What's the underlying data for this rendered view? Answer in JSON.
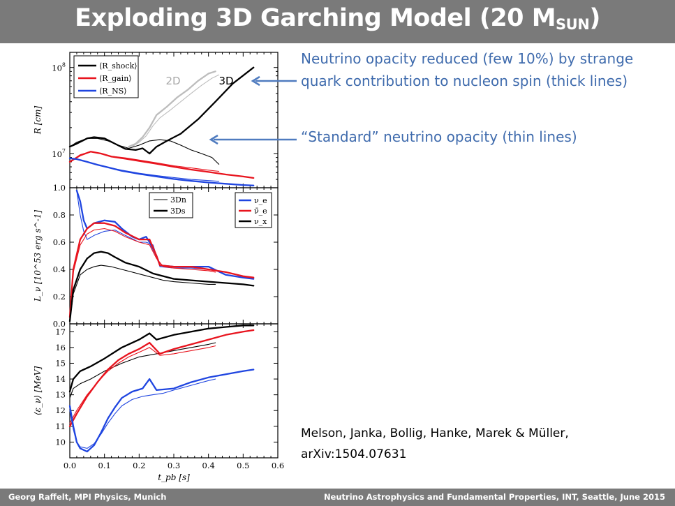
{
  "title": {
    "main": "Exploding 3D Garching Model (20 M",
    "sub": "SUN",
    "close": ")"
  },
  "annotations": {
    "thick": "Neutrino opacity reduced (few 10%) by strange quark contribution to nucleon spin (thick lines)",
    "thin": "“Standard” neutrino opacity (thin lines)"
  },
  "citation": {
    "line1": "Melson, Janka, Bollig, Hanke, Marek & Müller,",
    "line2": "arXiv:1504.07631"
  },
  "footer": {
    "left": "Georg Raffelt, MPI Physics, Munich",
    "right": "Neutrino Astrophysics and Fundamental Properties, INT, Seattle, June 2015"
  },
  "colors": {
    "black": "#000000",
    "red": "#e8141e",
    "blue": "#1f45e0",
    "gray": "#bdbdbd",
    "annotation": "#3f6bad"
  },
  "chart_data": [
    {
      "type": "line",
      "panel": "radii",
      "ylabel": "R [cm]",
      "yscale": "log",
      "ylim": [
        4000000,
        150000000
      ],
      "xlim": [
        0,
        0.6
      ],
      "yticks": [
        {
          "v": 10000000,
          "label": "10",
          "exp": "7"
        },
        {
          "v": 100000000,
          "label": "10",
          "exp": "8"
        }
      ],
      "legend": [
        "⟨R_shock⟩",
        "⟨R_gain⟩",
        "⟨R_NS⟩"
      ],
      "labels": {
        "left": "2D",
        "right": "3D"
      },
      "series": [
        {
          "color": "black",
          "width": 2.3,
          "x": [
            0,
            0.02,
            0.05,
            0.07,
            0.1,
            0.13,
            0.16,
            0.19,
            0.21,
            0.23,
            0.25,
            0.28,
            0.32,
            0.37,
            0.42,
            0.47,
            0.53
          ],
          "y": [
            12000000,
            13000000,
            15000000,
            15500000,
            15000000,
            13000000,
            11300000,
            11000000,
            11500000,
            10000000,
            12000000,
            14000000,
            17000000,
            25000000,
            40000000,
            65000000,
            100000000
          ]
        },
        {
          "color": "black",
          "width": 1.1,
          "x": [
            0,
            0.02,
            0.05,
            0.08,
            0.11,
            0.14,
            0.17,
            0.2,
            0.23,
            0.26,
            0.29,
            0.32,
            0.35,
            0.38,
            0.41,
            0.43
          ],
          "y": [
            12000000,
            13500000,
            15000000,
            15000000,
            14000000,
            12500000,
            11500000,
            12500000,
            14000000,
            14500000,
            14000000,
            12500000,
            11000000,
            10000000,
            9000000,
            7500000
          ]
        },
        {
          "color": "gray",
          "width": 2.3,
          "x": [
            0.17,
            0.19,
            0.21,
            0.23,
            0.25,
            0.28,
            0.31,
            0.34,
            0.37,
            0.4,
            0.42
          ],
          "y": [
            12000000,
            13000000,
            15500000,
            20000000,
            28000000,
            35000000,
            45000000,
            55000000,
            70000000,
            85000000,
            90000000
          ]
        },
        {
          "color": "gray",
          "width": 1.1,
          "x": [
            0.18,
            0.2,
            0.22,
            0.24,
            0.26,
            0.29,
            0.32,
            0.35,
            0.38,
            0.41,
            0.43
          ],
          "y": [
            12000000,
            13500000,
            16000000,
            21000000,
            26000000,
            32000000,
            40000000,
            50000000,
            62000000,
            75000000,
            82000000
          ]
        },
        {
          "color": "red",
          "width": 2.3,
          "x": [
            0,
            0.03,
            0.06,
            0.09,
            0.12,
            0.16,
            0.2,
            0.25,
            0.3,
            0.35,
            0.4,
            0.45,
            0.5,
            0.53
          ],
          "y": [
            8000000,
            9500000,
            10500000,
            10000000,
            9200000,
            8700000,
            8200000,
            7600000,
            7000000,
            6500000,
            6100000,
            5700000,
            5400000,
            5200000
          ]
        },
        {
          "color": "red",
          "width": 1.1,
          "x": [
            0,
            0.03,
            0.06,
            0.09,
            0.12,
            0.16,
            0.2,
            0.25,
            0.3,
            0.35,
            0.4,
            0.43
          ],
          "y": [
            8000000,
            9700000,
            10500000,
            10000000,
            9300000,
            8900000,
            8400000,
            7800000,
            7200000,
            6800000,
            6400000,
            6200000
          ]
        },
        {
          "color": "blue",
          "width": 2.3,
          "x": [
            0,
            0.02,
            0.05,
            0.08,
            0.11,
            0.15,
            0.2,
            0.25,
            0.3,
            0.35,
            0.4,
            0.45,
            0.5,
            0.53
          ],
          "y": [
            8800000,
            8600000,
            8000000,
            7400000,
            6900000,
            6300000,
            5800000,
            5400000,
            5050000,
            4800000,
            4600000,
            4450000,
            4300000,
            4250000
          ]
        },
        {
          "color": "blue",
          "width": 1.1,
          "x": [
            0,
            0.02,
            0.05,
            0.08,
            0.11,
            0.15,
            0.2,
            0.25,
            0.3,
            0.35,
            0.4,
            0.43
          ],
          "y": [
            8800000,
            8600000,
            8000000,
            7400000,
            6900000,
            6400000,
            5900000,
            5550000,
            5250000,
            5000000,
            4850000,
            4750000
          ]
        }
      ]
    },
    {
      "type": "line",
      "panel": "luminosity",
      "ylabel": "L_ν [10^53 erg s^-1]",
      "ylim": [
        0,
        1.0
      ],
      "xlim": [
        0,
        0.6
      ],
      "yticks": [
        "0.0",
        "0.2",
        "0.4",
        "0.6",
        "0.8",
        "1.0"
      ],
      "legend_runs": [
        "3Dn",
        "3Ds"
      ],
      "legend_flavors": [
        "ν_e",
        "ν̄_e",
        "ν_x"
      ],
      "series": [
        {
          "color": "blue",
          "width": 2.3,
          "x": [
            0.02,
            0.03,
            0.04,
            0.05,
            0.07,
            0.1,
            0.13,
            0.15,
            0.18,
            0.2,
            0.22,
            0.23,
            0.25,
            0.26,
            0.3,
            0.35,
            0.4,
            0.45,
            0.5,
            0.53
          ],
          "y": [
            0.98,
            0.9,
            0.76,
            0.7,
            0.74,
            0.76,
            0.75,
            0.7,
            0.64,
            0.62,
            0.64,
            0.6,
            0.5,
            0.43,
            0.42,
            0.42,
            0.42,
            0.36,
            0.34,
            0.33
          ]
        },
        {
          "color": "blue",
          "width": 1.1,
          "x": [
            0.02,
            0.03,
            0.04,
            0.05,
            0.07,
            0.1,
            0.13,
            0.16,
            0.2,
            0.22,
            0.24,
            0.26,
            0.3,
            0.35,
            0.4,
            0.42
          ],
          "y": [
            0.98,
            0.8,
            0.68,
            0.62,
            0.65,
            0.68,
            0.69,
            0.65,
            0.6,
            0.6,
            0.58,
            0.42,
            0.41,
            0.41,
            0.4,
            0.39
          ]
        },
        {
          "color": "red",
          "width": 2.3,
          "x": [
            0,
            0.01,
            0.03,
            0.05,
            0.07,
            0.1,
            0.13,
            0.16,
            0.2,
            0.23,
            0.25,
            0.26,
            0.3,
            0.35,
            0.4,
            0.45,
            0.5,
            0.53
          ],
          "y": [
            0.05,
            0.4,
            0.62,
            0.7,
            0.74,
            0.74,
            0.72,
            0.67,
            0.62,
            0.62,
            0.5,
            0.43,
            0.42,
            0.42,
            0.4,
            0.38,
            0.35,
            0.34
          ]
        },
        {
          "color": "red",
          "width": 1.1,
          "x": [
            0,
            0.01,
            0.03,
            0.05,
            0.07,
            0.1,
            0.13,
            0.16,
            0.2,
            0.23,
            0.25,
            0.27,
            0.3,
            0.35,
            0.4,
            0.42
          ],
          "y": [
            0.05,
            0.38,
            0.58,
            0.66,
            0.69,
            0.7,
            0.68,
            0.64,
            0.6,
            0.58,
            0.48,
            0.42,
            0.41,
            0.4,
            0.39,
            0.38
          ]
        },
        {
          "color": "black",
          "width": 2.3,
          "x": [
            0,
            0.01,
            0.03,
            0.05,
            0.07,
            0.09,
            0.11,
            0.13,
            0.16,
            0.2,
            0.24,
            0.27,
            0.3,
            0.35,
            0.4,
            0.45,
            0.5,
            0.53
          ],
          "y": [
            0.02,
            0.25,
            0.4,
            0.48,
            0.52,
            0.53,
            0.52,
            0.49,
            0.45,
            0.42,
            0.37,
            0.35,
            0.33,
            0.32,
            0.31,
            0.3,
            0.29,
            0.28
          ]
        },
        {
          "color": "black",
          "width": 1.1,
          "x": [
            0,
            0.01,
            0.03,
            0.05,
            0.07,
            0.09,
            0.12,
            0.15,
            0.18,
            0.21,
            0.24,
            0.27,
            0.3,
            0.35,
            0.4,
            0.42
          ],
          "y": [
            0.02,
            0.22,
            0.36,
            0.4,
            0.42,
            0.43,
            0.42,
            0.4,
            0.38,
            0.36,
            0.34,
            0.32,
            0.31,
            0.3,
            0.29,
            0.29
          ]
        }
      ]
    },
    {
      "type": "line",
      "panel": "mean_energy",
      "ylabel": "⟨ε_ν⟩ [MeV]",
      "xlabel": "t_pb [s]",
      "ylim": [
        9,
        17.5
      ],
      "xlim": [
        0,
        0.6
      ],
      "yticks": [
        "10",
        "11",
        "12",
        "13",
        "14",
        "15",
        "16",
        "17"
      ],
      "xticks": [
        "0.0",
        "0.1",
        "0.2",
        "0.3",
        "0.4",
        "0.5",
        "0.6"
      ],
      "series": [
        {
          "color": "black",
          "width": 2.3,
          "x": [
            0,
            0.01,
            0.03,
            0.06,
            0.1,
            0.15,
            0.2,
            0.23,
            0.25,
            0.3,
            0.35,
            0.4,
            0.45,
            0.5,
            0.53
          ],
          "y": [
            13.2,
            14.0,
            14.5,
            14.8,
            15.3,
            16.0,
            16.5,
            16.9,
            16.5,
            16.8,
            17.0,
            17.2,
            17.3,
            17.4,
            17.4
          ]
        },
        {
          "color": "black",
          "width": 1.1,
          "x": [
            0,
            0.01,
            0.03,
            0.06,
            0.1,
            0.15,
            0.2,
            0.25,
            0.3,
            0.35,
            0.4,
            0.42
          ],
          "y": [
            12.8,
            13.4,
            13.7,
            14.0,
            14.5,
            15.0,
            15.4,
            15.6,
            15.8,
            16.0,
            16.2,
            16.3
          ]
        },
        {
          "color": "red",
          "width": 2.3,
          "x": [
            0,
            0.02,
            0.05,
            0.08,
            0.11,
            0.14,
            0.17,
            0.2,
            0.23,
            0.26,
            0.3,
            0.35,
            0.4,
            0.45,
            0.5,
            0.53
          ],
          "y": [
            11.0,
            11.8,
            12.9,
            13.8,
            14.6,
            15.2,
            15.6,
            15.9,
            16.3,
            15.6,
            15.9,
            16.2,
            16.5,
            16.8,
            17.0,
            17.1
          ]
        },
        {
          "color": "red",
          "width": 1.1,
          "x": [
            0,
            0.02,
            0.05,
            0.08,
            0.11,
            0.14,
            0.17,
            0.2,
            0.23,
            0.26,
            0.3,
            0.35,
            0.4,
            0.42
          ],
          "y": [
            11.2,
            12.0,
            13.0,
            13.8,
            14.5,
            15.0,
            15.4,
            15.7,
            16.0,
            15.5,
            15.6,
            15.8,
            16.0,
            16.1
          ]
        },
        {
          "color": "blue",
          "width": 2.3,
          "x": [
            0,
            0.01,
            0.02,
            0.03,
            0.05,
            0.07,
            0.09,
            0.11,
            0.13,
            0.15,
            0.18,
            0.21,
            0.23,
            0.25,
            0.3,
            0.35,
            0.4,
            0.45,
            0.5,
            0.53
          ],
          "y": [
            12.3,
            11.0,
            10.0,
            9.6,
            9.4,
            9.8,
            10.6,
            11.5,
            12.2,
            12.8,
            13.2,
            13.4,
            14.0,
            13.3,
            13.4,
            13.8,
            14.1,
            14.3,
            14.5,
            14.6
          ]
        },
        {
          "color": "blue",
          "width": 1.1,
          "x": [
            0,
            0.01,
            0.02,
            0.03,
            0.05,
            0.07,
            0.09,
            0.11,
            0.13,
            0.15,
            0.18,
            0.21,
            0.24,
            0.27,
            0.3,
            0.35,
            0.4,
            0.42
          ],
          "y": [
            12.0,
            10.8,
            10.0,
            9.7,
            9.6,
            9.9,
            10.5,
            11.2,
            11.8,
            12.3,
            12.7,
            12.9,
            13.0,
            13.1,
            13.3,
            13.6,
            13.9,
            14.0
          ]
        }
      ]
    }
  ]
}
